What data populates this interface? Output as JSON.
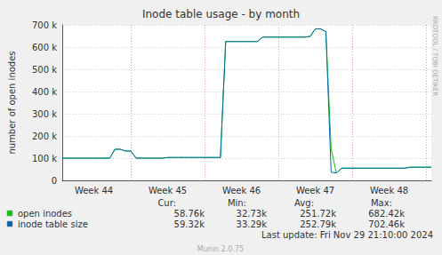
{
  "chart_data": {
    "type": "line",
    "title": "Inode table usage - by month",
    "y_label": "number of open inodes",
    "side_text": "RRDTOOL / TOBI OETIKER",
    "footer": "Last update: Fri Nov 29 21:10:00 2024",
    "credit": "Munin 2.0.75",
    "stat_headers": [
      "Cur:",
      "Min:",
      "Avg:",
      "Max:"
    ],
    "categories": [
      null,
      null,
      null,
      null,
      null,
      null,
      "Week 44",
      null,
      null,
      null,
      null,
      null,
      null,
      null,
      null,
      null,
      null,
      null,
      null,
      null,
      "Week 45",
      null,
      null,
      null,
      null,
      null,
      null,
      null,
      null,
      null,
      null,
      null,
      null,
      null,
      "Week 46",
      null,
      null,
      null,
      null,
      null,
      null,
      null,
      null,
      null,
      null,
      null,
      null,
      null,
      "Week 47",
      null,
      null,
      null,
      null,
      null,
      null,
      null,
      null,
      null,
      null,
      null,
      null,
      null,
      "Week 48",
      null,
      null,
      null,
      null,
      null,
      null,
      null,
      null
    ],
    "series": [
      {
        "name": "open inodes",
        "color": "#00cc00",
        "stat_labels": [
          "58.76k",
          "32.73k",
          "251.72k",
          "682.42k"
        ],
        "values": [
          100000,
          100000,
          100000,
          100000,
          100000,
          100000,
          100000,
          100000,
          100000,
          100000,
          140000,
          140000,
          132000,
          132000,
          100000,
          100000,
          100000,
          100000,
          100000,
          100000,
          103000,
          103000,
          103000,
          103000,
          103000,
          103000,
          103000,
          103000,
          103000,
          103000,
          103000,
          625000,
          625000,
          625000,
          625000,
          625000,
          625000,
          625000,
          645000,
          645000,
          645000,
          645000,
          645000,
          645000,
          645000,
          645000,
          645000,
          648000,
          682000,
          682000,
          670000,
          140000,
          33000,
          55000,
          55000,
          55000,
          55000,
          55000,
          55000,
          55000,
          55000,
          55000,
          55000,
          55000,
          55000,
          55000,
          59000,
          59000,
          59000,
          59000,
          59000
        ]
      },
      {
        "name": "inode table size",
        "color": "#0066b3",
        "stat_labels": [
          "59.32k",
          "33.29k",
          "252.79k",
          "702.46k"
        ],
        "values": [
          100000,
          100000,
          100000,
          100000,
          100000,
          100000,
          100000,
          100000,
          100000,
          100000,
          140000,
          140000,
          132000,
          132000,
          100000,
          100000,
          100000,
          100000,
          100000,
          100000,
          103000,
          103000,
          103000,
          103000,
          103000,
          103000,
          103000,
          103000,
          103000,
          103000,
          103000,
          625000,
          625000,
          625000,
          625000,
          625000,
          625000,
          625000,
          645000,
          645000,
          645000,
          645000,
          645000,
          645000,
          645000,
          645000,
          645000,
          648000,
          682000,
          682000,
          670000,
          36000,
          34000,
          55000,
          55000,
          55000,
          55000,
          55000,
          55000,
          55000,
          55000,
          55000,
          55000,
          55000,
          55000,
          55000,
          59500,
          59500,
          59500,
          59500,
          59500
        ]
      }
    ],
    "ylim": [
      0,
      700000
    ],
    "yticks": [
      0,
      {
        "value": 100000,
        "label": "100 k"
      },
      {
        "value": 200000,
        "label": "200 k"
      },
      {
        "value": 300000,
        "label": "300 k"
      },
      {
        "value": 400000,
        "label": "400 k"
      },
      {
        "value": 500000,
        "label": "500 k"
      },
      {
        "value": 600000,
        "label": "600 k"
      },
      {
        "value": 700000,
        "label": "700 k"
      }
    ],
    "grid": true
  }
}
